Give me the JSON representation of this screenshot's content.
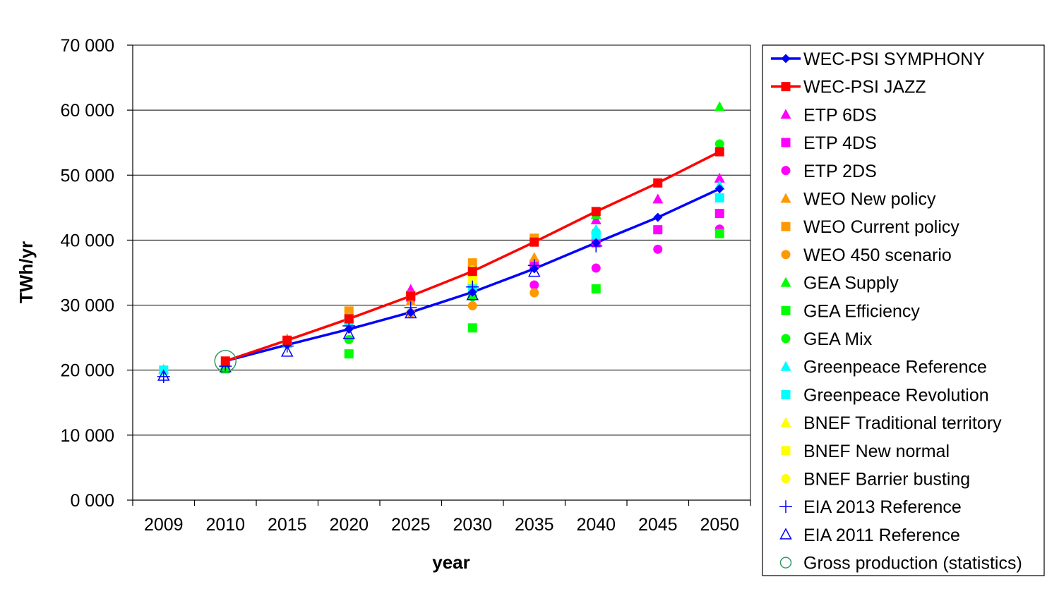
{
  "chart_data": {
    "type": "line",
    "xlabel": "year",
    "ylabel": "TWh/yr",
    "ylim": [
      0,
      70000
    ],
    "yticks": [
      "0 000",
      "10 000",
      "20 000",
      "30 000",
      "40 000",
      "50 000",
      "60 000",
      "70 000"
    ],
    "categories": [
      "2009",
      "2010",
      "2015",
      "2020",
      "2025",
      "2030",
      "2035",
      "2040",
      "2045",
      "2050"
    ],
    "grid": true,
    "legend_position": "right",
    "series": [
      {
        "name": "WEC-PSI SYMPHONY",
        "color": "#0000ff",
        "marker": "diamond",
        "line": true,
        "points": [
          [
            "2010",
            21400
          ],
          [
            "2015",
            23900
          ],
          [
            "2020",
            26300
          ],
          [
            "2025",
            28900
          ],
          [
            "2030",
            32000
          ],
          [
            "2035",
            35600
          ],
          [
            "2040",
            39600
          ],
          [
            "2045",
            43500
          ],
          [
            "2050",
            47900
          ]
        ]
      },
      {
        "name": "WEC-PSI JAZZ",
        "color": "#ff0000",
        "marker": "square",
        "line": true,
        "points": [
          [
            "2010",
            21400
          ],
          [
            "2015",
            24600
          ],
          [
            "2020",
            27900
          ],
          [
            "2025",
            31400
          ],
          [
            "2030",
            35200
          ],
          [
            "2035",
            39700
          ],
          [
            "2040",
            44400
          ],
          [
            "2045",
            48800
          ],
          [
            "2050",
            53600
          ]
        ]
      },
      {
        "name": "ETP 6DS",
        "color": "#ff00ff",
        "marker": "triangle",
        "points": [
          [
            "2025",
            32400
          ],
          [
            "2035",
            36800
          ],
          [
            "2040",
            43100
          ],
          [
            "2045",
            46300
          ],
          [
            "2050",
            49500
          ]
        ]
      },
      {
        "name": "ETP 4DS",
        "color": "#ff00ff",
        "marker": "square",
        "points": [
          [
            "2025",
            31500
          ],
          [
            "2035",
            36300
          ],
          [
            "2040",
            39600
          ],
          [
            "2045",
            41600
          ],
          [
            "2050",
            44100
          ]
        ]
      },
      {
        "name": "ETP 2DS",
        "color": "#ff00ff",
        "marker": "circle",
        "points": [
          [
            "2025",
            30800
          ],
          [
            "2035",
            33100
          ],
          [
            "2040",
            35700
          ],
          [
            "2045",
            38600
          ],
          [
            "2050",
            41700
          ]
        ]
      },
      {
        "name": "WEO New policy",
        "color": "#ff9900",
        "marker": "triangle",
        "points": [
          [
            "2015",
            24800
          ],
          [
            "2020",
            28300
          ],
          [
            "2025",
            30600
          ],
          [
            "2030",
            33800
          ],
          [
            "2035",
            37300
          ]
        ]
      },
      {
        "name": "WEO Current policy",
        "color": "#ff9900",
        "marker": "square",
        "points": [
          [
            "2015",
            24600
          ],
          [
            "2020",
            29100
          ],
          [
            "2025",
            31500
          ],
          [
            "2030",
            36500
          ],
          [
            "2035",
            40300
          ]
        ]
      },
      {
        "name": "WEO 450 scenario",
        "color": "#ff9900",
        "marker": "circle",
        "points": [
          [
            "2015",
            24300
          ],
          [
            "2020",
            27200
          ],
          [
            "2025",
            28800
          ],
          [
            "2030",
            29900
          ],
          [
            "2035",
            31900
          ]
        ]
      },
      {
        "name": "GEA Supply",
        "color": "#00ff00",
        "marker": "triangle",
        "points": [
          [
            "2010",
            20700
          ],
          [
            "2040",
            43900
          ],
          [
            "2050",
            60500
          ]
        ]
      },
      {
        "name": "GEA Efficiency",
        "color": "#00ff00",
        "marker": "square",
        "points": [
          [
            "2010",
            20200
          ],
          [
            "2020",
            22500
          ],
          [
            "2030",
            26500
          ],
          [
            "2040",
            32500
          ],
          [
            "2050",
            41000
          ]
        ]
      },
      {
        "name": "GEA Mix",
        "color": "#00ff00",
        "marker": "circle",
        "points": [
          [
            "2010",
            20500
          ],
          [
            "2020",
            24700
          ],
          [
            "2030",
            31300
          ],
          [
            "2040",
            41200
          ],
          [
            "2050",
            54800
          ]
        ]
      },
      {
        "name": "Greenpeace Reference",
        "color": "#00ffff",
        "marker": "triangle",
        "points": [
          [
            "2009",
            20100
          ],
          [
            "2015",
            24300
          ],
          [
            "2020",
            28100
          ],
          [
            "2030",
            33800
          ],
          [
            "2040",
            41600
          ],
          [
            "2050",
            48400
          ]
        ]
      },
      {
        "name": "Greenpeace Revolution",
        "color": "#00ffff",
        "marker": "square",
        "points": [
          [
            "2009",
            20000
          ],
          [
            "2015",
            24100
          ],
          [
            "2020",
            27600
          ],
          [
            "2030",
            32900
          ],
          [
            "2040",
            40800
          ],
          [
            "2050",
            46500
          ]
        ]
      },
      {
        "name": "BNEF Traditional territory",
        "color": "#ffff00",
        "marker": "triangle",
        "points": [
          [
            "2030",
            34800
          ]
        ]
      },
      {
        "name": "BNEF New normal",
        "color": "#ffff00",
        "marker": "square",
        "points": [
          [
            "2030",
            33900
          ]
        ]
      },
      {
        "name": "BNEF Barrier busting",
        "color": "#ffff00",
        "marker": "circle",
        "points": [
          [
            "2030",
            35400
          ]
        ]
      },
      {
        "name": "EIA 2013 Reference",
        "color": "#0000ff",
        "marker": "plus",
        "points": [
          [
            "2009",
            19000
          ],
          [
            "2010",
            20600
          ],
          [
            "2015",
            23700
          ],
          [
            "2020",
            26800
          ],
          [
            "2025",
            29600
          ],
          [
            "2030",
            32800
          ],
          [
            "2035",
            36100
          ],
          [
            "2040",
            39100
          ]
        ]
      },
      {
        "name": "EIA 2011 Reference",
        "color": "#0000ff",
        "marker": "open-triangle",
        "points": [
          [
            "2009",
            19100
          ],
          [
            "2010",
            20400
          ],
          [
            "2015",
            22800
          ],
          [
            "2020",
            25500
          ],
          [
            "2025",
            28700
          ],
          [
            "2030",
            31500
          ],
          [
            "2035",
            35100
          ]
        ]
      },
      {
        "name": "Gross production (statistics)",
        "color": "#339966",
        "marker": "open-circle",
        "points": [
          [
            "2010",
            21400
          ]
        ]
      }
    ]
  }
}
